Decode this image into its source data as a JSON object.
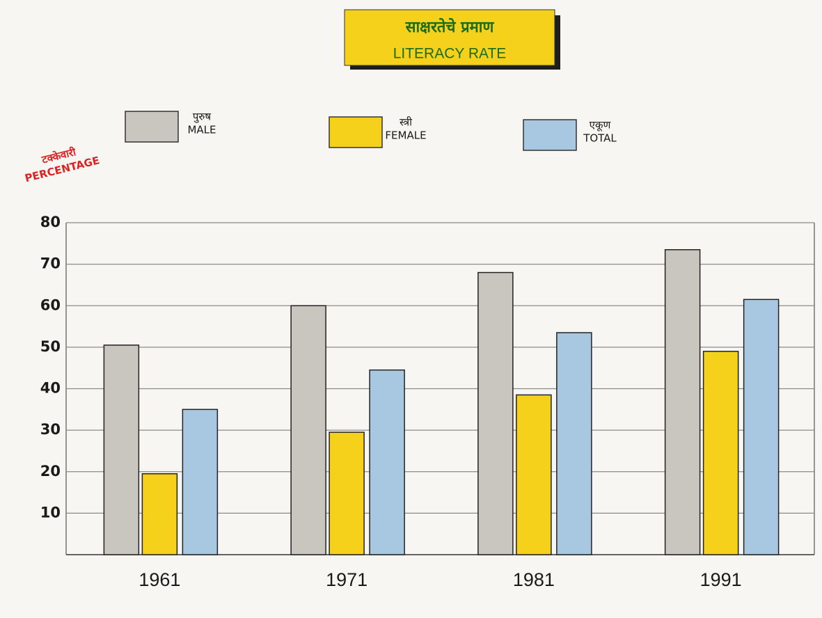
{
  "chart_data": {
    "type": "bar",
    "title_local": "साक्षरतेचे प्रमाण",
    "title": "LITERACY RATE",
    "y_label_local": "टक्केवारी",
    "y_label": "PERCENTAGE",
    "categories": [
      "1961",
      "1971",
      "1981",
      "1991"
    ],
    "series": [
      {
        "name_local": "पुरुष",
        "name": "MALE",
        "color": "#c9c5bf",
        "values": [
          50.5,
          60,
          68,
          73.5
        ]
      },
      {
        "name_local": "स्त्री",
        "name": "FEMALE",
        "color": "#f6d11c",
        "values": [
          19.5,
          29.5,
          38.5,
          49
        ]
      },
      {
        "name_local": "एकूण",
        "name": "TOTAL",
        "color": "#a8c7e0",
        "values": [
          35,
          44.5,
          53.5,
          61.5
        ]
      }
    ],
    "ylim": [
      0,
      80
    ],
    "yticks": [
      10,
      20,
      30,
      40,
      50,
      60,
      70,
      80
    ],
    "grid": true
  }
}
